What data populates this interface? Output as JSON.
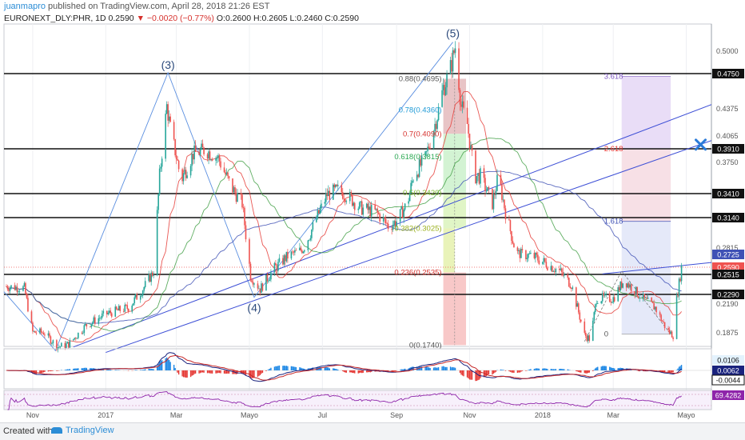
{
  "header": {
    "user": "juanmapro",
    "published": "published on TradingView.com, April 28, 2018 21:26 EST",
    "symbol": "EURONEXT_DLY:PHR, 1D",
    "last": "0.2590",
    "change": "▼ −0.0020 (−0.77%)",
    "ohlc": "O:0.2600  H:0.2605  L:0.2460  C:0.2590"
  },
  "footer": {
    "created_with": "Created with",
    "brand": "TradingView"
  },
  "colors": {
    "up": "#26a69a",
    "down": "#ef5350",
    "trend": "#2962ff",
    "ma_red": "#e53935",
    "ma_green": "#43a047",
    "ma_blue": "#3f51b5",
    "fib_area": "#f5b5b5",
    "fib_green": "#c8f0c8",
    "ext_purple": "#e3d4f5",
    "marker": "#2b7bd8"
  },
  "chart_data": [
    {
      "type": "line",
      "title": "",
      "series_note": "daily candles",
      "x": [
        "2016-10-10",
        "2016-11-01",
        "2016-12-01",
        "2017-01-01",
        "2017-02-01",
        "2017-02-21",
        "2017-03-15",
        "2017-04-15",
        "2017-05-10",
        "2017-06-15",
        "2017-07-15",
        "2017-08-15",
        "2017-09-15",
        "2017-10-10",
        "2017-10-20",
        "2017-11-05",
        "2017-12-01",
        "2018-01-01",
        "2018-02-10",
        "2018-03-01",
        "2018-03-20",
        "2018-04-20",
        "2018-04-27"
      ],
      "close": [
        0.238,
        0.188,
        0.175,
        0.208,
        0.235,
        0.44,
        0.385,
        0.35,
        0.235,
        0.28,
        0.345,
        0.32,
        0.36,
        0.46,
        0.505,
        0.36,
        0.32,
        0.265,
        0.18,
        0.225,
        0.232,
        0.185,
        0.259
      ],
      "x_ticks": [
        "Nov",
        "2017",
        "Mar",
        "Mayo",
        "Jul",
        "Sep",
        "Nov",
        "2018",
        "Mar",
        "Mayo"
      ],
      "y_ticks": [
        "0.5000",
        "0.4750",
        "0.4375",
        "0.4065",
        "0.3910",
        "0.3750",
        "0.3410",
        "0.3140",
        "0.2815",
        "0.2725",
        "0.2590",
        "0.2515",
        "0.2290",
        "0.2190",
        "0.1875"
      ],
      "y_badges": [
        {
          "value": "0.4750",
          "kind": "level"
        },
        {
          "value": "0.3910",
          "kind": "level"
        },
        {
          "value": "0.3410",
          "kind": "level"
        },
        {
          "value": "0.3140",
          "kind": "level"
        },
        {
          "value": "0.2725",
          "kind": "ma"
        },
        {
          "value": "0.2590",
          "kind": "price"
        },
        {
          "value": "0.2515",
          "kind": "level"
        },
        {
          "value": "0.2290",
          "kind": "level"
        }
      ],
      "horizontal_levels": [
        0.475,
        0.391,
        0.341,
        0.314,
        0.2515,
        0.229
      ],
      "wave_labels": [
        {
          "label": "(3)",
          "date": "2017-02-22",
          "price": 0.475
        },
        {
          "label": "(4)",
          "date": "2017-05-05",
          "price": 0.226
        },
        {
          "label": "(5)",
          "date": "2017-10-18",
          "price": 0.51
        }
      ],
      "fib_retracement": [
        {
          "label": "0.88(0.4695)",
          "price": 0.4695
        },
        {
          "label": "0.78(0.4360)",
          "price": 0.436
        },
        {
          "label": "0.7(0.4090)",
          "price": 0.409
        },
        {
          "label": "0.618(0.3815)",
          "price": 0.3815
        },
        {
          "label": "0.5(0.3420)",
          "price": 0.342
        },
        {
          "label": "0.382(0.3025)",
          "price": 0.3025
        },
        {
          "label": "0.236(0.2535)",
          "price": 0.2535
        },
        {
          "label": "0(0.1740)",
          "price": 0.174
        }
      ],
      "fib_extension": [
        {
          "label": "3.618",
          "price": 0.472
        },
        {
          "label": "2.618",
          "price": 0.391
        },
        {
          "label": "1.618",
          "price": 0.31
        },
        {
          "label": "0",
          "price": 0.186
        }
      ],
      "ylim": [
        0.165,
        0.52
      ]
    },
    {
      "type": "line",
      "title": "",
      "y_badges": [
        "0.0106",
        "0.0062",
        "-0.0044"
      ]
    },
    {
      "type": "line",
      "title": "",
      "y_badges": [
        "69.4282"
      ]
    }
  ]
}
